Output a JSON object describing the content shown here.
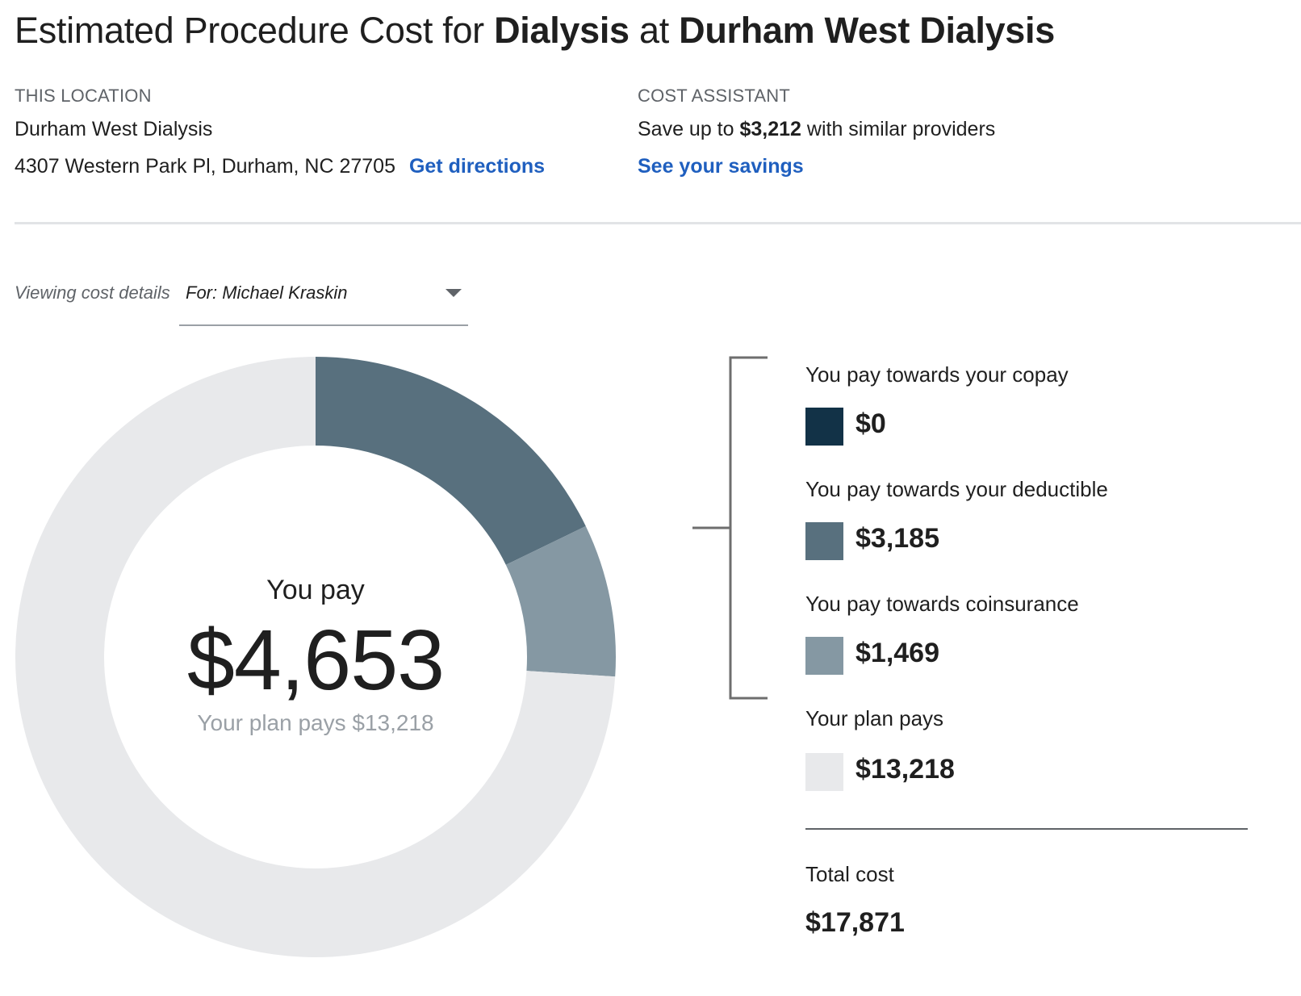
{
  "header": {
    "title_prefix": "Estimated Procedure Cost for ",
    "procedure": "Dialysis",
    "title_mid": " at ",
    "facility": "Durham West Dialysis"
  },
  "location": {
    "heading": "THIS LOCATION",
    "name": "Durham West Dialysis",
    "address": "4307 Western Park Pl, Durham, NC 27705",
    "directions_link": "Get directions"
  },
  "cost_assistant": {
    "heading": "COST ASSISTANT",
    "savings_prefix": "Save up to ",
    "savings_amount": "$3,212",
    "savings_suffix": " with similar providers",
    "savings_link": "See your savings"
  },
  "viewer": {
    "label": "Viewing cost details",
    "selected": "For: Michael Kraskin"
  },
  "summary": {
    "you_pay_label": "You pay",
    "you_pay_amount": "$4,653",
    "plan_pays_text": "Your plan pays $13,218"
  },
  "legend": [
    {
      "label": "You pay towards your copay",
      "value": "$0",
      "color": "#123247"
    },
    {
      "label": "You pay towards your deductible",
      "value": "$3,185",
      "color": "#58707e"
    },
    {
      "label": "You pay towards coinsurance",
      "value": "$1,469",
      "color": "#8598a3"
    },
    {
      "label": "Your plan pays",
      "value": "$13,218",
      "color": "#e8e9eb"
    }
  ],
  "total": {
    "label": "Total cost",
    "value": "$17,871"
  },
  "chart_data": {
    "type": "pie",
    "categories": [
      "You pay towards your copay",
      "You pay towards your deductible",
      "You pay towards coinsurance",
      "Your plan pays"
    ],
    "values": [
      0,
      3185,
      1469,
      13218
    ],
    "colors": [
      "#123247",
      "#58707e",
      "#8598a3",
      "#e8e9eb"
    ]
  }
}
